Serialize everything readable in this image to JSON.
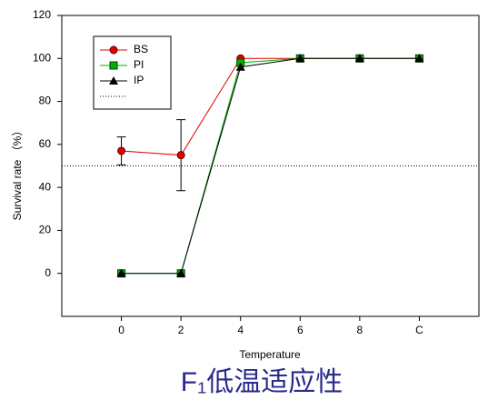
{
  "chart_data": {
    "type": "line",
    "xlabel": "Temperature",
    "ylabel": "Survival rate （%）",
    "caption": "F₁低温适应性",
    "x": [
      0,
      2,
      4,
      6,
      8,
      10
    ],
    "xlim": [
      -2,
      12
    ],
    "xticks": [
      0,
      2,
      4,
      6,
      8,
      {
        "value": 10,
        "label": "C"
      }
    ],
    "ylim": [
      -20,
      120
    ],
    "yticks": [
      0,
      20,
      40,
      60,
      80,
      100,
      120
    ],
    "reference_line": 50,
    "legend": "upper left",
    "series": [
      {
        "name": "BS",
        "color": "#e00000",
        "marker": "circle",
        "values": [
          57,
          55,
          100,
          100,
          100,
          100
        ],
        "errors": [
          6.5,
          16.5,
          null,
          null,
          null,
          null
        ]
      },
      {
        "name": "PI",
        "color": "#00b000",
        "marker": "square",
        "values": [
          0,
          0,
          98,
          100,
          100,
          100
        ]
      },
      {
        "name": "IP",
        "color": "#000000",
        "marker": "triangle",
        "values": [
          0,
          0,
          96,
          100,
          100,
          100
        ]
      }
    ]
  }
}
